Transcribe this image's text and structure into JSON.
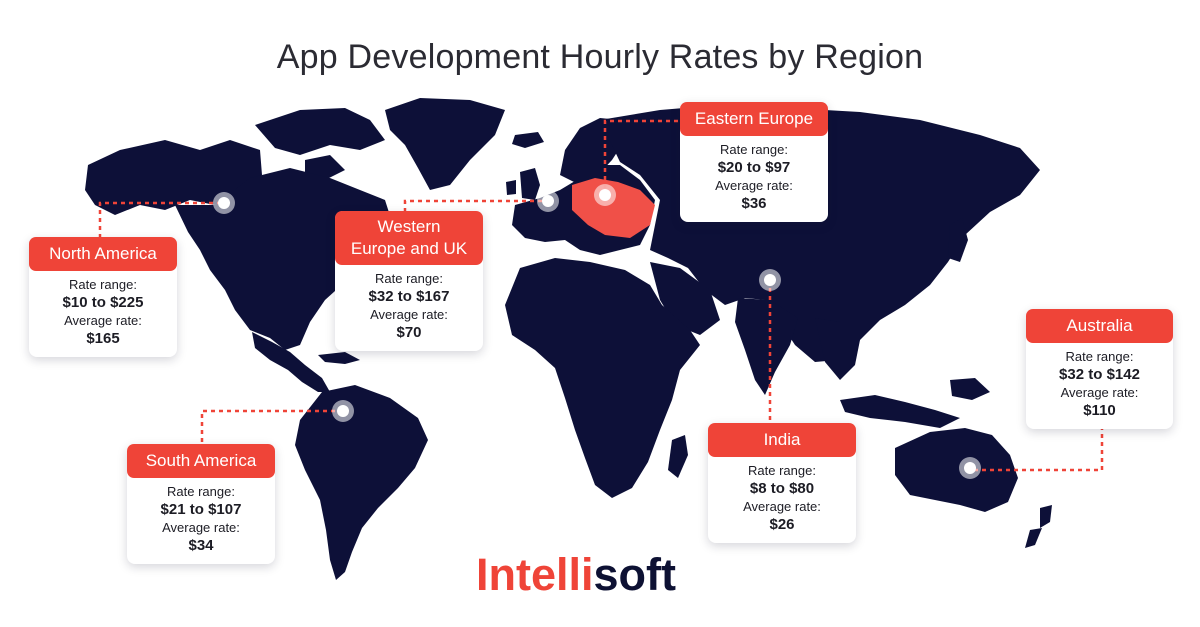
{
  "title": "App Development Hourly Rates by Region",
  "colors": {
    "land": "#0d1038",
    "accent": "#ef4438",
    "eastern_europe": "#f05048"
  },
  "regions": [
    {
      "id": "north-america",
      "name": "North America",
      "rate_label": "Rate range:",
      "rate_range": "$10 to $225",
      "avg_label": "Average rate:",
      "avg_rate": "$165"
    },
    {
      "id": "western-europe",
      "name": "Western Europe and UK",
      "rate_label": "Rate range:",
      "rate_range": "$32 to $167",
      "avg_label": "Average rate:",
      "avg_rate": "$70"
    },
    {
      "id": "eastern-europe",
      "name": "Eastern Europe",
      "rate_label": "Rate range:",
      "rate_range": "$20 to $97",
      "avg_label": "Average rate:",
      "avg_rate": "$36"
    },
    {
      "id": "south-america",
      "name": "South America",
      "rate_label": "Rate range:",
      "rate_range": "$21 to $107",
      "avg_label": "Average rate:",
      "avg_rate": "$34"
    },
    {
      "id": "india",
      "name": "India",
      "rate_label": "Rate range:",
      "rate_range": "$8 to $80",
      "avg_label": "Average rate:",
      "avg_rate": "$26"
    },
    {
      "id": "australia",
      "name": "Australia",
      "rate_label": "Rate range:",
      "rate_range": "$32 to $142",
      "avg_label": "Average rate:",
      "avg_rate": "$110"
    }
  ],
  "logo": {
    "part1": "Intelli",
    "part2": "soft"
  }
}
